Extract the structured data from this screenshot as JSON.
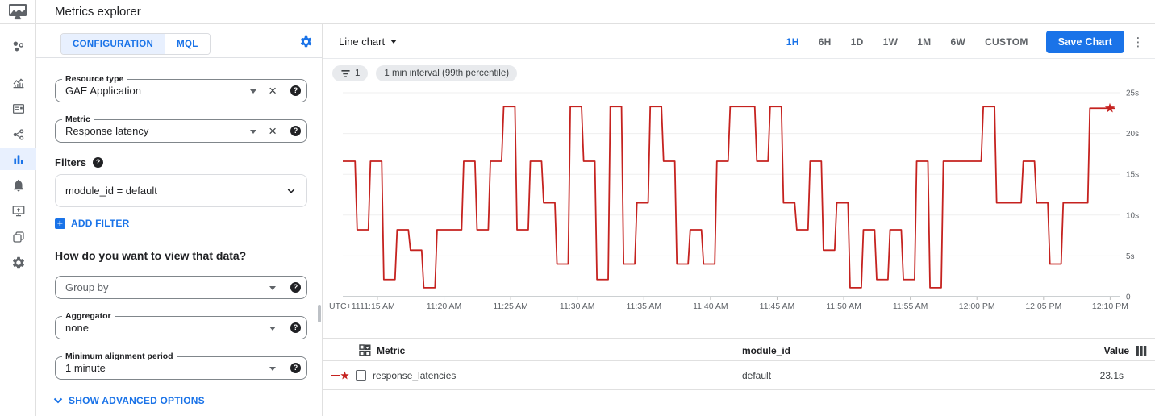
{
  "app": {
    "title": "Metrics explorer"
  },
  "sidebar": {
    "icons": [
      "monitoring-logo",
      "overview",
      "dashboards",
      "cards",
      "services",
      "metrics-explorer",
      "alerting",
      "uptime-checks",
      "groups",
      "settings"
    ],
    "active": "metrics-explorer"
  },
  "config": {
    "tabs": {
      "configuration": "CONFIGURATION",
      "mql": "MQL",
      "active": "CONFIGURATION"
    },
    "resource_type": {
      "label": "Resource type",
      "value": "GAE Application"
    },
    "metric": {
      "label": "Metric",
      "value": "Response latency"
    },
    "filters_heading": "Filters",
    "filter_value": "module_id = default",
    "add_filter": "ADD FILTER",
    "view_question": "How do you want to view that data?",
    "group_by": {
      "placeholder": "Group by"
    },
    "aggregator": {
      "label": "Aggregator",
      "value": "none"
    },
    "alignment_period": {
      "label": "Minimum alignment period",
      "value": "1 minute"
    },
    "advanced_options": "SHOW ADVANCED OPTIONS",
    "help_glyph": "?",
    "close_glyph": "×",
    "plus_glyph": "+"
  },
  "toolbar": {
    "chart_type": "Line chart",
    "time_ranges": [
      "1H",
      "6H",
      "1D",
      "1W",
      "1M",
      "6W",
      "CUSTOM"
    ],
    "active_range": "1H",
    "save_label": "Save Chart",
    "kebab_glyph": "⋮"
  },
  "chips": {
    "filter_count": "1",
    "interval_label": "1 min interval (99th percentile)"
  },
  "chart_data": {
    "type": "line",
    "step": true,
    "unit": "s",
    "series": [
      {
        "name": "response_latencies",
        "color": "#c5221f",
        "interval_minutes": 1,
        "start_time": "11:12 AM",
        "values": [
          16.6,
          8.2,
          16.6,
          2.1,
          8.2,
          5.7,
          1.1,
          8.2,
          8.2,
          16.6,
          8.2,
          16.6,
          23.3,
          8.2,
          16.6,
          11.5,
          4.0,
          23.3,
          16.6,
          2.1,
          23.3,
          4.0,
          11.5,
          23.3,
          16.6,
          4.0,
          8.2,
          4.0,
          16.6,
          23.3,
          23.3,
          16.6,
          23.3,
          11.5,
          8.2,
          16.6,
          5.7,
          11.5,
          1.1,
          8.2,
          2.1,
          8.2,
          2.1,
          16.6,
          1.1,
          16.6,
          16.6,
          16.6,
          23.3,
          11.5,
          11.5,
          16.6,
          11.5,
          4.0,
          11.5,
          11.5,
          23.1,
          23.1
        ]
      }
    ],
    "x_axis_prefix": "UTC+11",
    "x_tick_labels": [
      "11:15 AM",
      "11:20 AM",
      "11:25 AM",
      "11:30 AM",
      "11:35 AM",
      "11:40 AM",
      "11:45 AM",
      "11:50 AM",
      "11:55 AM",
      "12:00 PM",
      "12:05 PM",
      "12:10 PM"
    ],
    "x_tick_minutes": [
      2.6,
      7.6,
      12.6,
      17.6,
      22.6,
      27.6,
      32.6,
      37.6,
      42.6,
      47.6,
      52.6,
      57.6
    ],
    "y_tick_labels": [
      "25s",
      "20s",
      "15s",
      "10s",
      "5s",
      "0"
    ],
    "y_tick_values": [
      25,
      20,
      15,
      10,
      5,
      0
    ],
    "ylim": [
      0,
      25
    ],
    "grid": true,
    "end_marker": "star",
    "legend_position": "table-below"
  },
  "table": {
    "metric_header": "Metric",
    "module_header": "module_id",
    "value_header": "Value",
    "row": {
      "metric": "response_latencies",
      "module_id": "default",
      "value": "23.1s"
    }
  },
  "colors": {
    "accent": "#1a73e8",
    "series_red": "#c5221f",
    "active_bg": "#e8f0fe"
  }
}
